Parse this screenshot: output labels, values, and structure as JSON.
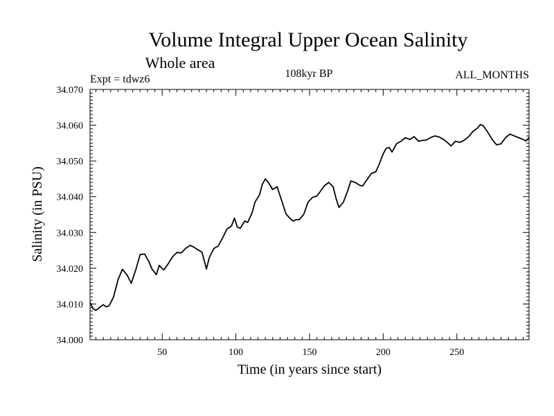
{
  "chart_data": {
    "type": "line",
    "title": "Volume Integral Upper Ocean Salinity",
    "subtitle": "Whole area",
    "annotations": {
      "left": "Expt = tdwz6",
      "center": "108kyr BP",
      "right": "ALL_MONTHS"
    },
    "xlabel": "Time (in years since start)",
    "ylabel": "Salinity (in PSU)",
    "xlim": [
      1,
      299
    ],
    "ylim": [
      34.0,
      34.07
    ],
    "xticks": [
      50,
      100,
      150,
      200,
      250
    ],
    "xtick_labels": [
      "50",
      "100",
      "150",
      "200",
      "250"
    ],
    "yticks": [
      34.0,
      34.01,
      34.02,
      34.03,
      34.04,
      34.05,
      34.06,
      34.07
    ],
    "ytick_labels": [
      "34.000",
      "34.010",
      "34.020",
      "34.030",
      "34.040",
      "34.050",
      "34.060",
      "34.070"
    ],
    "grid": false,
    "line_color": "#000000",
    "series": [
      {
        "x": [
          1,
          3,
          5,
          8,
          10,
          12,
          14,
          17,
          20,
          23,
          26,
          29,
          32,
          35,
          38,
          41,
          43,
          46,
          48,
          51,
          54,
          57,
          60,
          63,
          66,
          69,
          71,
          74,
          77,
          80,
          82,
          85,
          88,
          91,
          94,
          97,
          99,
          101,
          103,
          106,
          108,
          111,
          113,
          116,
          118,
          120,
          122,
          125,
          128,
          131,
          134,
          137,
          139,
          141,
          143,
          146,
          149,
          152,
          155,
          157,
          160,
          163,
          166,
          168,
          170,
          173,
          176,
          178,
          181,
          184,
          186,
          189,
          192,
          195,
          197,
          200,
          202,
          204,
          206,
          209,
          212,
          215,
          218,
          221,
          224,
          227,
          229,
          232,
          235,
          238,
          241,
          244,
          246,
          249,
          252,
          255,
          258,
          261,
          264,
          266,
          268,
          271,
          274,
          277,
          280,
          283,
          286,
          289,
          292,
          295,
          297,
          299
        ],
        "y": [
          34.0105,
          34.0087,
          34.0082,
          34.0092,
          34.0098,
          34.0092,
          34.0095,
          34.012,
          34.0168,
          34.0197,
          34.0182,
          34.0158,
          34.0195,
          34.0238,
          34.024,
          34.0218,
          34.0198,
          34.0182,
          34.0208,
          34.0195,
          34.0212,
          34.0232,
          34.0244,
          34.0243,
          34.0256,
          34.0264,
          34.026,
          34.0252,
          34.0245,
          34.0198,
          34.023,
          34.0255,
          34.0262,
          34.0285,
          34.031,
          34.0318,
          34.034,
          34.0315,
          34.0312,
          34.0332,
          34.0328,
          34.0355,
          34.0385,
          34.0405,
          34.0435,
          34.045,
          34.044,
          34.042,
          34.0428,
          34.039,
          34.0352,
          34.0338,
          34.0332,
          34.0336,
          34.0336,
          34.035,
          34.0385,
          34.0398,
          34.0402,
          34.0413,
          34.043,
          34.044,
          34.0428,
          34.0395,
          34.037,
          34.0385,
          34.0418,
          34.0444,
          34.044,
          34.0432,
          34.043,
          34.0448,
          34.0465,
          34.047,
          34.0488,
          34.052,
          34.0535,
          34.0538,
          34.0525,
          34.0548,
          34.0555,
          34.0565,
          34.056,
          34.0568,
          34.0555,
          34.0558,
          34.0558,
          34.0565,
          34.057,
          34.0567,
          34.056,
          34.055,
          34.0542,
          34.0555,
          34.0552,
          34.0558,
          34.0568,
          34.0583,
          34.0592,
          34.0602,
          34.0598,
          34.058,
          34.056,
          34.0545,
          34.0548,
          34.0565,
          34.0575,
          34.057,
          34.0565,
          34.056,
          34.0556,
          34.0566
        ]
      }
    ]
  }
}
